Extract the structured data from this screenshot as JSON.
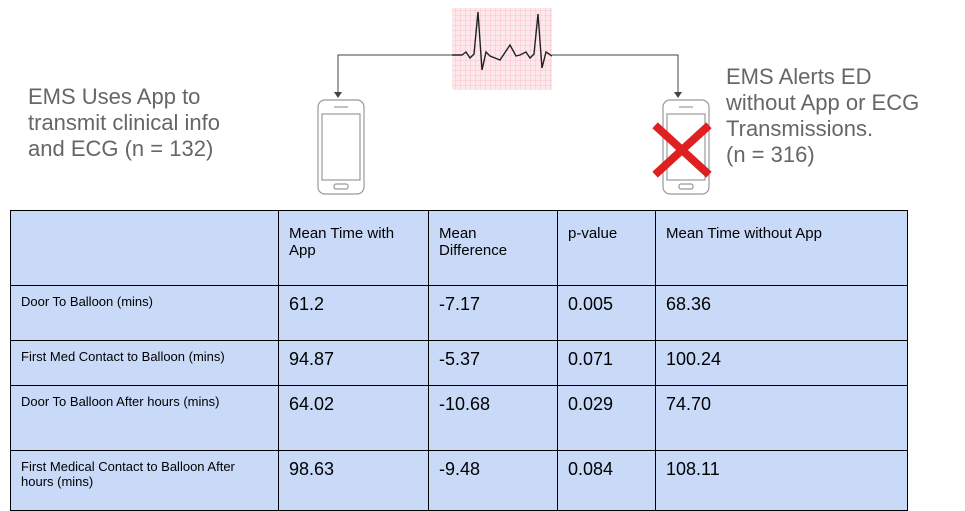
{
  "left_text": {
    "lines": [
      "EMS Uses App to",
      "transmit clinical info",
      "and ECG (n = 132)"
    ]
  },
  "right_text": {
    "lines": [
      "EMS Alerts ED",
      "without App or ECG",
      "Transmissions.",
      "(n = 316)"
    ]
  },
  "table": {
    "header": [
      "",
      "Mean Time with App",
      "Mean Difference",
      "p-value",
      "Mean Time without App"
    ],
    "rows": [
      [
        "Door To Balloon (mins)",
        "61.2",
        "-7.17",
        "0.005",
        "68.36"
      ],
      [
        "First Med Contact to Balloon (mins)",
        "94.87",
        "-5.37",
        "0.071",
        "100.24"
      ],
      [
        "Door To Balloon After hours (mins)",
        "64.02",
        "-10.68",
        "0.029",
        "74.70"
      ],
      [
        "First Medical Contact to Balloon After hours (mins)",
        "98.63",
        "-9.48",
        "0.084",
        "108.11"
      ]
    ]
  }
}
